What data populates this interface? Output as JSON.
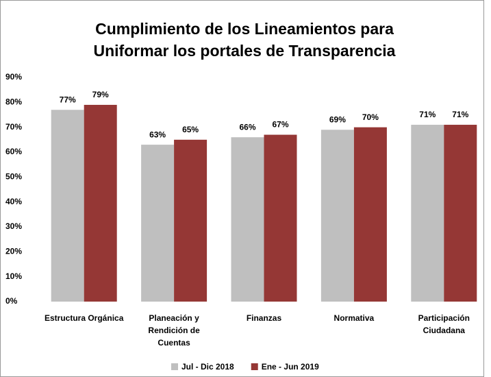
{
  "chart_data": {
    "type": "bar",
    "title": [
      "Cumplimiento de los Lineamientos para",
      "Uniformar los portales de Transparencia"
    ],
    "categories": [
      [
        "Estructura Orgánica"
      ],
      [
        "Planeación y",
        "Rendición de",
        "Cuentas"
      ],
      [
        "Finanzas"
      ],
      [
        "Normativa"
      ],
      [
        "Participación",
        "Ciudadana"
      ]
    ],
    "series": [
      {
        "name": "Jul - Dic 2018",
        "color": "#bfbfbf",
        "values": [
          77,
          63,
          66,
          69,
          71
        ],
        "value_labels": [
          "77%",
          "63%",
          "66%",
          "69%",
          "71%"
        ]
      },
      {
        "name": "Ene - Jun 2019",
        "color": "#953735",
        "values": [
          79,
          65,
          67,
          70,
          71
        ],
        "value_labels": [
          "79%",
          "65%",
          "67%",
          "70%",
          "71%"
        ]
      }
    ],
    "ylim": [
      0,
      90
    ],
    "yticks": [
      {
        "value": 0,
        "label": "0%"
      },
      {
        "value": 10,
        "label": "10%"
      },
      {
        "value": 20,
        "label": "20%"
      },
      {
        "value": 30,
        "label": "30%"
      },
      {
        "value": 40,
        "label": "40%"
      },
      {
        "value": 50,
        "label": "50%"
      },
      {
        "value": 60,
        "label": "60%"
      },
      {
        "value": 70,
        "label": "70%"
      },
      {
        "value": 80,
        "label": "80%"
      },
      {
        "value": 90,
        "label": "90%"
      }
    ],
    "grid": false,
    "legend": "bottom"
  }
}
